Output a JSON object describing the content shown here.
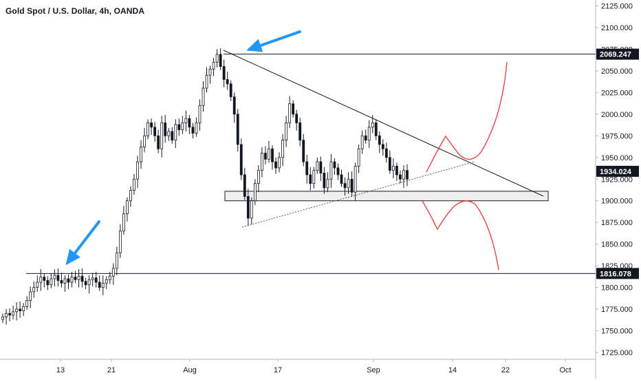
{
  "chart_data": {
    "type": "candlestick",
    "title": "Gold Spot / U.S. Dollar, 4h, OANDA",
    "y_ticks": [
      "2125.000",
      "2100.000",
      "2075.000",
      "2050.000",
      "2025.000",
      "2000.000",
      "1975.000",
      "1950.000",
      "1925.000",
      "1900.000",
      "1875.000",
      "1850.000",
      "1825.000",
      "1800.000",
      "1775.000",
      "1750.000",
      "1725.000"
    ],
    "y_tick_values": [
      2125,
      2100,
      2075,
      2050,
      2025,
      2000,
      1975,
      1950,
      1925,
      1900,
      1875,
      1850,
      1825,
      1800,
      1775,
      1750,
      1725
    ],
    "x_ticks": [
      "13",
      "21",
      "Aug",
      "17",
      "Sep",
      "14",
      "22",
      "Oct"
    ],
    "ylim": [
      1720,
      2132
    ],
    "price_labels": [
      {
        "text": "2069.247",
        "value": 2069.247,
        "color": "#131722"
      },
      {
        "text": "1934.024",
        "value": 1934.024,
        "color": "#131722"
      },
      {
        "text": "1816.078",
        "value": 1816.078,
        "color": "#131722"
      }
    ],
    "horizontal_lines": [
      2069.247,
      1816.078
    ],
    "support_zone": [
      1900,
      1911
    ],
    "closes": [
      1766,
      1770,
      1768,
      1772,
      1775,
      1773,
      1778,
      1785,
      1795,
      1800,
      1806,
      1812,
      1808,
      1803,
      1810,
      1814,
      1808,
      1805,
      1810,
      1806,
      1812,
      1809,
      1813,
      1807,
      1803,
      1809,
      1811,
      1806,
      1800,
      1805,
      1809,
      1813,
      1822,
      1840,
      1865,
      1885,
      1900,
      1912,
      1925,
      1945,
      1962,
      1975,
      1990,
      1985,
      1975,
      1960,
      1990,
      1975,
      1980,
      1970,
      1988,
      1982,
      1990,
      1995,
      1985,
      1978,
      1990,
      2010,
      2030,
      2045,
      2052,
      2060,
      2069,
      2055,
      2040,
      2035,
      2020,
      2000,
      1965,
      1930,
      1905,
      1880,
      1900,
      1920,
      1935,
      1955,
      1948,
      1960,
      1945,
      1938,
      1950,
      1970,
      1990,
      2012,
      2000,
      1990,
      1970,
      1945,
      1930,
      1920,
      1935,
      1945,
      1932,
      1915,
      1925,
      1945,
      1938,
      1930,
      1920,
      1915,
      1925,
      1910,
      1940,
      1960,
      1975,
      1970,
      1985,
      1990,
      1975,
      1965,
      1960,
      1950,
      1935,
      1940,
      1930,
      1925,
      1935,
      1925
    ],
    "annotations": [
      {
        "type": "arrow",
        "color": "#2196f3",
        "label": ""
      },
      {
        "type": "arrow",
        "color": "#2196f3",
        "label": ""
      },
      {
        "type": "projection",
        "color": "#e53935",
        "label": ""
      },
      {
        "type": "projection",
        "color": "#e53935",
        "label": ""
      }
    ]
  }
}
